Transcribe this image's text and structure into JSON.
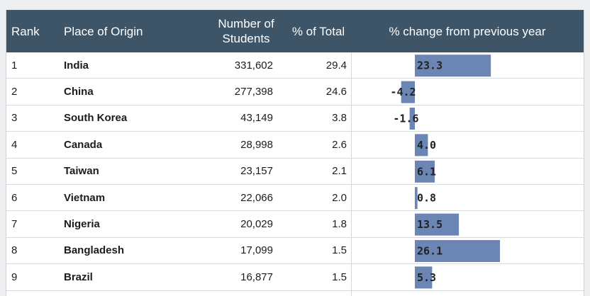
{
  "table": {
    "headers": {
      "rank": "Rank",
      "origin": "Place of Origin",
      "students": "Number of Students",
      "pct_total": "% of Total",
      "pct_change": "% change from previous year"
    },
    "rows": [
      {
        "rank": "1",
        "origin": "India",
        "students": "331,602",
        "pct_total": "29.4",
        "change_label": "23.3"
      },
      {
        "rank": "2",
        "origin": "China",
        "students": "277,398",
        "pct_total": "24.6",
        "change_label": "-4.2"
      },
      {
        "rank": "3",
        "origin": "South Korea",
        "students": "43,149",
        "pct_total": "3.8",
        "change_label": "-1.6"
      },
      {
        "rank": "4",
        "origin": "Canada",
        "students": "28,998",
        "pct_total": "2.6",
        "change_label": "4.0"
      },
      {
        "rank": "5",
        "origin": "Taiwan",
        "students": "23,157",
        "pct_total": "2.1",
        "change_label": "6.1"
      },
      {
        "rank": "6",
        "origin": "Vietnam",
        "students": "22,066",
        "pct_total": "2.0",
        "change_label": "0.8"
      },
      {
        "rank": "7",
        "origin": "Nigeria",
        "students": "20,029",
        "pct_total": "1.8",
        "change_label": "13.5"
      },
      {
        "rank": "8",
        "origin": "Bangladesh",
        "students": "17,099",
        "pct_total": "1.5",
        "change_label": "26.1"
      },
      {
        "rank": "9",
        "origin": "Brazil",
        "students": "16,877",
        "pct_total": "1.5",
        "change_label": "5.3"
      }
    ]
  },
  "chart_data": {
    "type": "bar",
    "categories": [
      "India",
      "China",
      "South Korea",
      "Canada",
      "Taiwan",
      "Vietnam",
      "Nigeria",
      "Bangladesh",
      "Brazil"
    ],
    "values": [
      23.3,
      -4.2,
      -1.6,
      4.0,
      6.1,
      0.8,
      13.5,
      26.1,
      5.3
    ],
    "title": "% change from previous year",
    "xlabel": "",
    "ylabel": "",
    "orientation": "horizontal",
    "bar_color": "#6b86b5"
  },
  "colors": {
    "header_bg": "#3d5567",
    "bar": "#6b86b5"
  }
}
